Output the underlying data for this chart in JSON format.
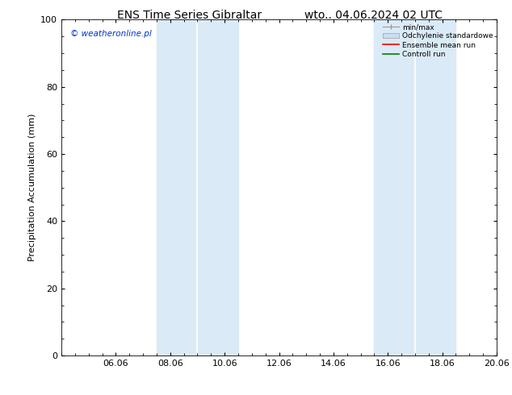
{
  "title_left": "ENS Time Series Gibraltar",
  "title_right": "wto.. 04.06.2024 02 UTC",
  "ylabel": "Precipitation Accumulation (mm)",
  "watermark": "© weatheronline.pl",
  "watermark_color": "#0033cc",
  "ylim": [
    0,
    100
  ],
  "yticks": [
    0,
    20,
    40,
    60,
    80,
    100
  ],
  "xtick_labels": [
    "06.06",
    "08.06",
    "10.06",
    "12.06",
    "14.06",
    "16.06",
    "18.06",
    "20.06"
  ],
  "xtick_positions": [
    2,
    4,
    6,
    8,
    10,
    12,
    14,
    16
  ],
  "xlim": [
    0,
    16
  ],
  "shaded_bands": [
    {
      "x_start": 3.5,
      "x_end": 4.5,
      "color": "#daeaf7"
    },
    {
      "x_start": 4.5,
      "x_end": 6.5,
      "color": "#daeaf7"
    },
    {
      "x_start": 11.5,
      "x_end": 12.5,
      "color": "#daeaf7"
    },
    {
      "x_start": 12.5,
      "x_end": 14.5,
      "color": "#daeaf7"
    }
  ],
  "shade_color": "#daeaf7",
  "background_color": "#ffffff",
  "plot_bg_color": "#ffffff",
  "legend_labels": [
    "min/max",
    "Odchylenie standardowe",
    "Ensemble mean run",
    "Controll run"
  ],
  "legend_colors_line": [
    "#999999",
    "#ccddee",
    "#ff0000",
    "#008000"
  ],
  "tick_font_size": 8,
  "label_font_size": 8,
  "title_font_size": 10,
  "watermark_font_size": 7.5
}
